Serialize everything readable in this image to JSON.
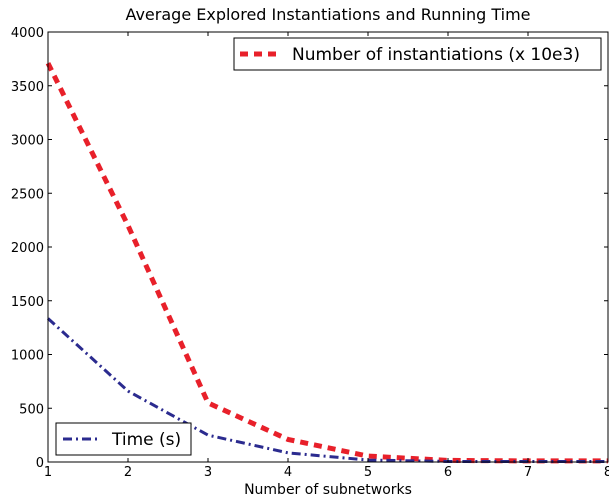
{
  "chart_data": {
    "type": "line",
    "title": "Average Explored Instantiations and Running Time",
    "xlabel": "Number of subnetworks",
    "ylabel": "",
    "xlim": [
      1,
      8
    ],
    "ylim": [
      0,
      4000
    ],
    "x_ticks": [
      "1",
      "2",
      "3",
      "4",
      "5",
      "6",
      "7",
      "8"
    ],
    "y_ticks": [
      "0",
      "500",
      "1000",
      "1500",
      "2000",
      "2500",
      "3000",
      "3500",
      "4000"
    ],
    "x": [
      1,
      2,
      3,
      4,
      5,
      6,
      7,
      8
    ],
    "grid": false,
    "series": [
      {
        "name": "Number of instantiations (x 10e3)",
        "values": [
          3710,
          2200,
          550,
          210,
          55,
          15,
          10,
          10
        ],
        "color": "#e8202a",
        "style": "dashed",
        "legend_location": "upper right"
      },
      {
        "name": "Time (s)",
        "values": [
          1335,
          660,
          250,
          85,
          18,
          5,
          5,
          5
        ],
        "color": "#2b2b8f",
        "style": "dash-dot",
        "legend_location": "lower left"
      }
    ]
  }
}
